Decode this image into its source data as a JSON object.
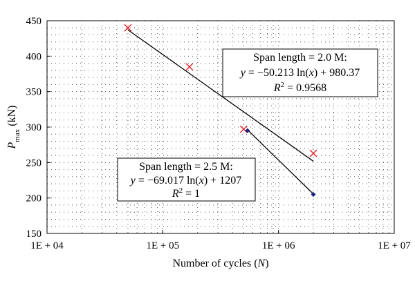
{
  "chart_data": {
    "type": "scatter",
    "x_scale": "log",
    "xlim": [
      10000,
      10000000
    ],
    "ylim": [
      150,
      450
    ],
    "xlabel_main": "Number of cycles (",
    "xlabel_var": "N",
    "xlabel_close": ")",
    "ylabel_var": "P",
    "ylabel_sub": "max",
    "ylabel_unit": " (kN)",
    "x_tick_labels": [
      "1E + 04",
      "1E + 05",
      "1E + 06",
      "1E + 07"
    ],
    "x_ticks": [
      10000,
      100000,
      1000000,
      10000000
    ],
    "y_ticks": [
      150,
      200,
      250,
      300,
      350,
      400,
      450
    ],
    "grid": true,
    "series": [
      {
        "marker": "x",
        "color": "#e8202a",
        "points": [
          [
            50000,
            440
          ],
          [
            170000,
            385
          ],
          [
            500000,
            297
          ],
          [
            2000000,
            263
          ]
        ],
        "fit": {
          "a": -50.213,
          "b": 980.37,
          "x_range": [
            50000,
            2000000
          ]
        }
      },
      {
        "marker": "dot",
        "color": "#1a237e",
        "points": [
          [
            540000,
            295
          ],
          [
            2000000,
            205
          ]
        ],
        "fit": {
          "a": -69.017,
          "b": 1207,
          "x_range": [
            540000,
            2000000
          ]
        }
      }
    ],
    "annotations": [
      {
        "line1": "Span length  = 2.0 M:",
        "eq_y": "y",
        "eq_mid": " = −50.213 ln(",
        "eq_x": "x",
        "eq_end": ") + 980.37",
        "r_label": "R",
        "r_exp": "2",
        "r_value": " = 0.9568"
      },
      {
        "line1": "Span length  = 2.5 M:",
        "eq_y": "y",
        "eq_mid": " = −69.017 ln(",
        "eq_x": "x",
        "eq_end": ") + 1207",
        "r_label": "R",
        "r_exp": "2",
        "r_value": " = 1"
      }
    ]
  }
}
